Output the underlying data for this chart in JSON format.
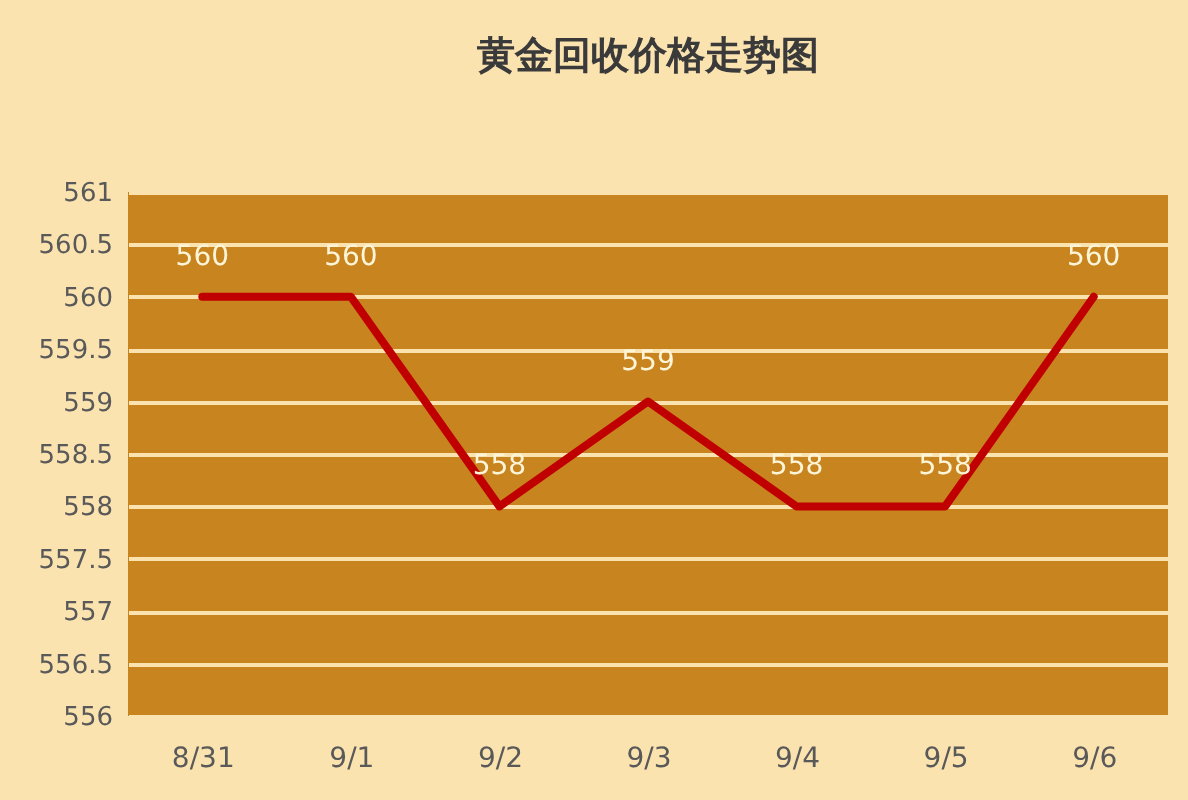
{
  "chart_data": {
    "type": "line",
    "title": "黄金回收价格走势图",
    "categories": [
      "8/31",
      "9/1",
      "9/2",
      "9/3",
      "9/4",
      "9/5",
      "9/6"
    ],
    "series": [
      {
        "color": "#c00000",
        "values": [
          560,
          560,
          558,
          559,
          558,
          558,
          560
        ]
      }
    ],
    "ylim": [
      556,
      561
    ],
    "yticks": [
      556,
      556.5,
      557,
      557.5,
      558,
      558.5,
      559,
      559.5,
      560,
      560.5,
      561
    ],
    "grid": "y",
    "data_labels": true,
    "legend": false,
    "marker": "none",
    "line_style": "solid"
  }
}
